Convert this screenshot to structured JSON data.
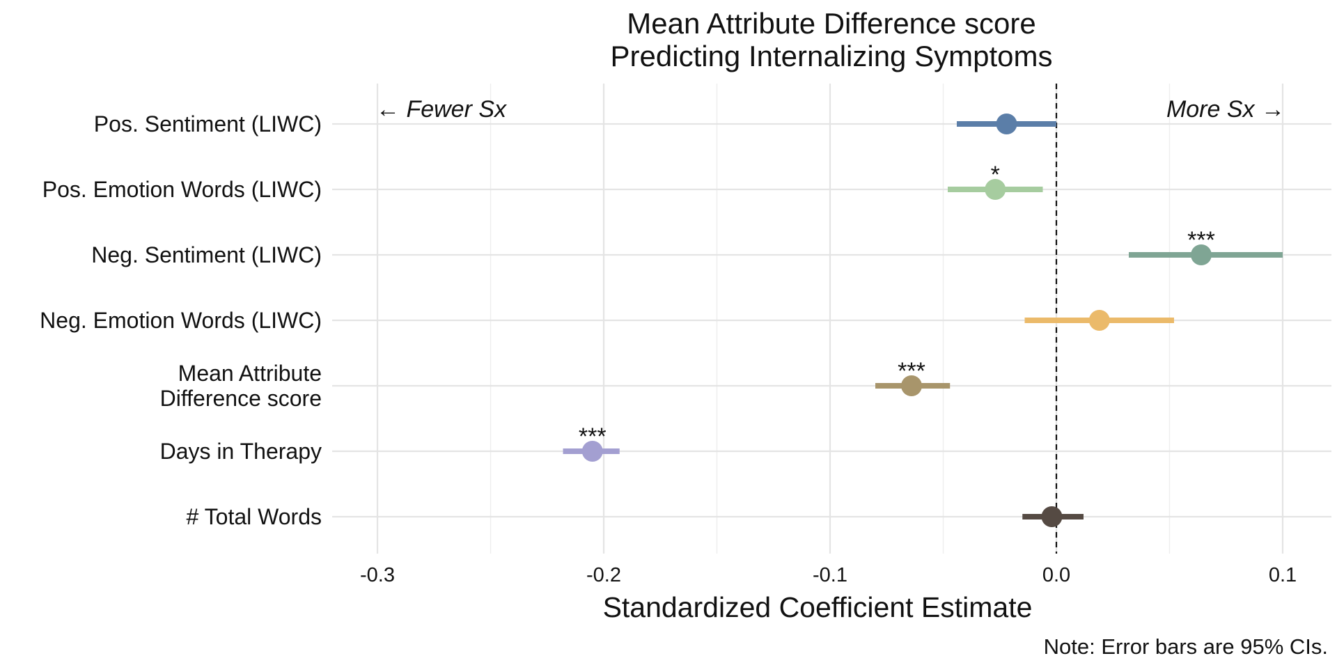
{
  "chart_data": {
    "type": "forest",
    "title": [
      "Mean Attribute Difference score",
      "Predicting Internalizing Symptoms"
    ],
    "xlabel": "Standardized Coefficient Estimate",
    "ylabel": "",
    "xlim": [
      -0.32,
      0.12
    ],
    "x_ticks": [
      -0.3,
      -0.2,
      -0.1,
      0.0,
      0.1
    ],
    "x_tick_labels": [
      "-0.3",
      "-0.2",
      "-0.1",
      "0.0",
      "0.1"
    ],
    "minor_gridlines": [
      -0.25,
      -0.15,
      -0.05,
      0.05
    ],
    "reference_line": 0.0,
    "grid": true,
    "annotations": {
      "left": "← Fewer Sx",
      "right": "More Sx →"
    },
    "note": "Note: Error bars are 95% CIs.",
    "rows": [
      {
        "label": [
          "Pos. Sentiment (LIWC)"
        ],
        "estimate": -0.022,
        "ci_low": -0.044,
        "ci_high": 0.0,
        "sig": "",
        "color": "#5b7ea8"
      },
      {
        "label": [
          "Pos. Emotion Words (LIWC)"
        ],
        "estimate": -0.027,
        "ci_low": -0.048,
        "ci_high": -0.006,
        "sig": "*",
        "color": "#a6cc9f"
      },
      {
        "label": [
          "Neg. Sentiment (LIWC)"
        ],
        "estimate": 0.064,
        "ci_low": 0.032,
        "ci_high": 0.1,
        "sig": "***",
        "color": "#7fa594"
      },
      {
        "label": [
          "Neg. Emotion Words (LIWC)"
        ],
        "estimate": 0.019,
        "ci_low": -0.014,
        "ci_high": 0.052,
        "sig": "",
        "color": "#ebba6a"
      },
      {
        "label": [
          "Mean Attribute",
          "Difference score"
        ],
        "estimate": -0.064,
        "ci_low": -0.08,
        "ci_high": -0.047,
        "sig": "***",
        "color": "#a8956b"
      },
      {
        "label": [
          "Days in Therapy"
        ],
        "estimate": -0.205,
        "ci_low": -0.218,
        "ci_high": -0.193,
        "sig": "***",
        "color": "#a39fd1"
      },
      {
        "label": [
          "# Total Words"
        ],
        "estimate": -0.002,
        "ci_low": -0.015,
        "ci_high": 0.012,
        "sig": "",
        "color": "#554a43"
      }
    ]
  }
}
